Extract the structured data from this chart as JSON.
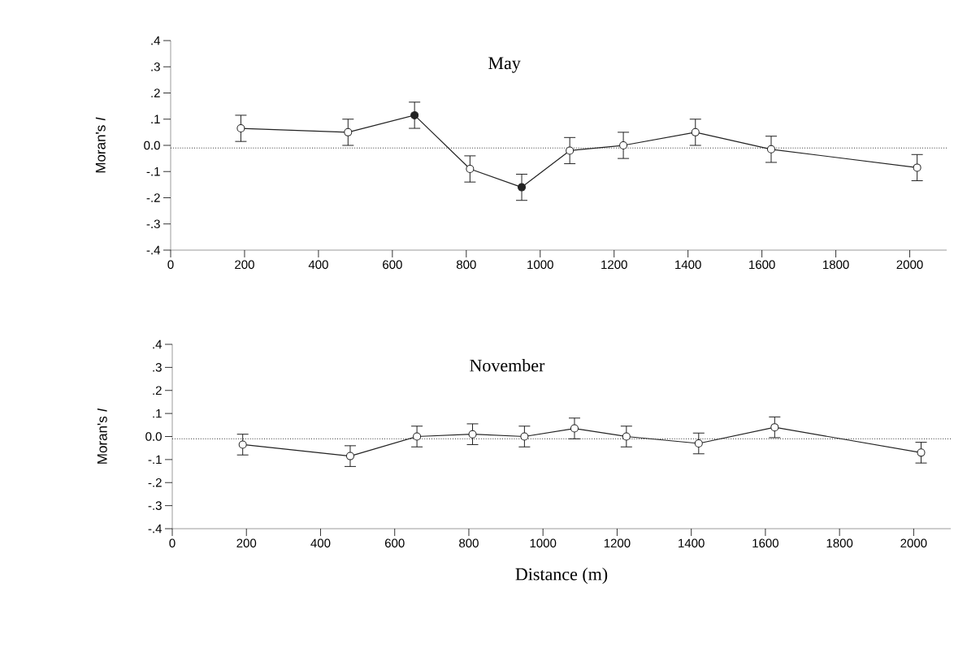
{
  "chart_data": [
    {
      "type": "line",
      "title": "May",
      "ylabel": "Moran's *I*",
      "x": [
        190,
        480,
        660,
        810,
        950,
        1080,
        1225,
        1420,
        1625,
        2020
      ],
      "series": [
        {
          "color": "#222222",
          "colors": [
            "#ffffff",
            "#ffffff",
            "#222222",
            "#ffffff",
            "#222222",
            "#ffffff",
            "#ffffff",
            "#ffffff",
            "#ffffff",
            "#ffffff"
          ],
          "values": [
            0.065,
            0.05,
            0.115,
            -0.09,
            -0.16,
            -0.02,
            0.0,
            0.05,
            -0.015,
            -0.085
          ],
          "errors": [
            0.05,
            0.05,
            0.05,
            0.05,
            0.05,
            0.05,
            0.05,
            0.05,
            0.05,
            0.05
          ]
        }
      ],
      "xlim": [
        0,
        2100
      ],
      "ylim": [
        -0.4,
        0.4
      ],
      "xticks": [
        0,
        200,
        400,
        600,
        800,
        1000,
        1200,
        1400,
        1600,
        1800,
        2000
      ],
      "yticks": [
        {
          "value": -0.4,
          "label": "-.4"
        },
        {
          "value": -0.3,
          "label": "-.3"
        },
        {
          "value": -0.2,
          "label": "-.2"
        },
        {
          "value": -0.1,
          "label": "-.1"
        },
        {
          "value": 0,
          "label": "0.0"
        },
        {
          "value": 0.1,
          "label": ".1"
        },
        {
          "value": 0.2,
          "label": ".2"
        },
        {
          "value": 0.3,
          "label": ".3"
        },
        {
          "value": 0.4,
          "label": ".4"
        }
      ],
      "ref_lines": [
        {
          "axis": "y",
          "value": -0.01,
          "line_style": "dotted"
        }
      ],
      "marker": "circle",
      "line_style": "solid"
    },
    {
      "type": "line",
      "title": "November",
      "ylabel": "Moran's *I*",
      "xlabel": "Distance (m)",
      "x": [
        190,
        480,
        660,
        810,
        950,
        1085,
        1225,
        1420,
        1625,
        2020
      ],
      "series": [
        {
          "color": "#222222",
          "colors": [
            "#ffffff",
            "#ffffff",
            "#ffffff",
            "#ffffff",
            "#ffffff",
            "#ffffff",
            "#ffffff",
            "#ffffff",
            "#ffffff",
            "#ffffff"
          ],
          "values": [
            -0.035,
            -0.085,
            0.0,
            0.01,
            0.0,
            0.035,
            0.0,
            -0.03,
            0.04,
            -0.07
          ],
          "errors": [
            0.045,
            0.045,
            0.045,
            0.045,
            0.045,
            0.045,
            0.045,
            0.045,
            0.045,
            0.045
          ]
        }
      ],
      "xlim": [
        0,
        2100
      ],
      "ylim": [
        -0.4,
        0.4
      ],
      "xticks": [
        0,
        200,
        400,
        600,
        800,
        1000,
        1200,
        1400,
        1600,
        1800,
        2000
      ],
      "yticks": [
        {
          "value": -0.4,
          "label": "-.4"
        },
        {
          "value": -0.3,
          "label": "-.3"
        },
        {
          "value": -0.2,
          "label": "-.2"
        },
        {
          "value": -0.1,
          "label": "-.1"
        },
        {
          "value": 0,
          "label": "0.0"
        },
        {
          "value": 0.1,
          "label": ".1"
        },
        {
          "value": 0.2,
          "label": ".2"
        },
        {
          "value": 0.3,
          "label": ".3"
        },
        {
          "value": 0.4,
          "label": ".4"
        }
      ],
      "ref_lines": [
        {
          "axis": "y",
          "value": -0.01,
          "line_style": "dotted"
        }
      ],
      "marker": "circle",
      "line_style": "solid"
    }
  ]
}
